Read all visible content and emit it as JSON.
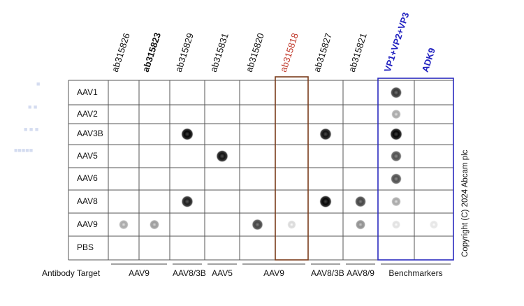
{
  "columns": [
    {
      "label": "ab315826",
      "color": "#111111",
      "bold": false
    },
    {
      "label": "ab315823",
      "color": "#111111",
      "bold": true
    },
    {
      "label": "ab315829",
      "color": "#111111",
      "bold": false
    },
    {
      "label": "ab315831",
      "color": "#111111",
      "bold": false
    },
    {
      "label": "ab315820",
      "color": "#111111",
      "bold": false
    },
    {
      "label": "ab315818",
      "color": "#c0392b",
      "bold": false
    },
    {
      "label": "ab315827",
      "color": "#111111",
      "bold": false
    },
    {
      "label": "ab315821",
      "color": "#111111",
      "bold": false
    },
    {
      "label": "VP1+VP2+VP3",
      "color": "#1f1fbf",
      "bold": true
    },
    {
      "label": "ADK9",
      "color": "#1f1fbf",
      "bold": true
    }
  ],
  "rows": [
    "AAV1",
    "AAV2",
    "AAV3B",
    "AAV5",
    "AAV6",
    "AAV8",
    "AAV9",
    "PBS"
  ],
  "row_header": "Antibody Target",
  "groups": [
    {
      "label": "AAV9",
      "from": 0,
      "to": 1
    },
    {
      "label": "AAV8/3B",
      "from": 2,
      "to": 2
    },
    {
      "label": "AAV5",
      "from": 3,
      "to": 3
    },
    {
      "label": "AAV9",
      "from": 4,
      "to": 5
    },
    {
      "label": "AAV8/3B",
      "from": 6,
      "to": 6
    },
    {
      "label": "AAV8/9",
      "from": 7,
      "to": 7
    },
    {
      "label": "Benchmarkers",
      "from": 8,
      "to": 9
    }
  ],
  "spots": [
    {
      "row": 6,
      "col": 0,
      "intensity": 0.35
    },
    {
      "row": 6,
      "col": 1,
      "intensity": 0.4
    },
    {
      "row": 2,
      "col": 2,
      "intensity": 1.0
    },
    {
      "row": 5,
      "col": 2,
      "intensity": 0.9
    },
    {
      "row": 3,
      "col": 3,
      "intensity": 0.95
    },
    {
      "row": 6,
      "col": 4,
      "intensity": 0.75
    },
    {
      "row": 6,
      "col": 5,
      "intensity": 0.15
    },
    {
      "row": 2,
      "col": 6,
      "intensity": 0.95
    },
    {
      "row": 5,
      "col": 6,
      "intensity": 1.0
    },
    {
      "row": 5,
      "col": 7,
      "intensity": 0.75
    },
    {
      "row": 6,
      "col": 7,
      "intensity": 0.45
    },
    {
      "row": 0,
      "col": 8,
      "intensity": 0.8
    },
    {
      "row": 1,
      "col": 8,
      "intensity": 0.35
    },
    {
      "row": 2,
      "col": 8,
      "intensity": 1.0
    },
    {
      "row": 3,
      "col": 8,
      "intensity": 0.7
    },
    {
      "row": 4,
      "col": 8,
      "intensity": 0.7
    },
    {
      "row": 5,
      "col": 8,
      "intensity": 0.35
    },
    {
      "row": 6,
      "col": 8,
      "intensity": 0.12
    },
    {
      "row": 6,
      "col": 9,
      "intensity": 0.1
    }
  ],
  "highlight_colors": {
    "red_box": "#7a3b1a",
    "blue_box": "#2b2bbf"
  },
  "copyright": "Copyright (C) 2024 Abcam plc"
}
